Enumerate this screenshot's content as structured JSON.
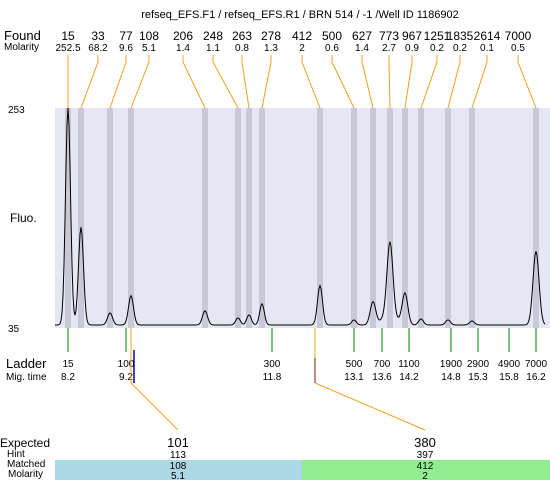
{
  "header": {
    "title": "refseq_EFS.F1 / refseq_EFS.R1 / BRN 514 / -1 /Well ID 1186902"
  },
  "labels": {
    "found": "Found",
    "molarity": "Molarity",
    "fluo": "Fluo.",
    "ladder": "Ladder",
    "mig_time": "Mig. time",
    "expected": "Expected",
    "hint": "Hint",
    "matched": "Matched",
    "matched_molarity": "Molarity"
  },
  "colors": {
    "plot_bg": "#e6e6f5",
    "peak_band": "#c8c8d8",
    "trace": "#000000",
    "leader": "#f0a020",
    "ladder_tick": "#008000",
    "marker_blue": "#0000cc",
    "match_left": "#add8e6",
    "match_right": "#90ee90"
  },
  "chart_data": {
    "type": "line",
    "title": "refseq_EFS.F1 / refseq_EFS.R1 / BRN 514 / -1 /Well ID 1186902",
    "ylabel": "Fluo.",
    "y_ticks": [
      "253",
      "35"
    ],
    "ylim": [
      35,
      253
    ],
    "found_peaks": [
      {
        "size": "15",
        "molarity": "252.5",
        "height": 253
      },
      {
        "size": "33",
        "molarity": "68.2",
        "height": 135
      },
      {
        "size": "77",
        "molarity": "9.6",
        "height": 50
      },
      {
        "size": "108",
        "molarity": "5.1",
        "height": 67
      },
      {
        "size": "206",
        "molarity": "1.4",
        "height": 52
      },
      {
        "size": "248",
        "molarity": "1.1",
        "height": 45
      },
      {
        "size": "263",
        "molarity": "0.8",
        "height": 48
      },
      {
        "size": "278",
        "molarity": "1.3",
        "height": 59
      },
      {
        "size": "412",
        "molarity": "2",
        "height": 77
      },
      {
        "size": "500",
        "molarity": "0.6",
        "height": 43
      },
      {
        "size": "627",
        "molarity": "1.4",
        "height": 61
      },
      {
        "size": "773",
        "molarity": "2.7",
        "height": 118
      },
      {
        "size": "967",
        "molarity": "0.9",
        "height": 69
      },
      {
        "size": "1251",
        "molarity": "0.2",
        "height": 44
      },
      {
        "size": "1835",
        "molarity": "0.2",
        "height": 43
      },
      {
        "size": "2614",
        "molarity": "0.1",
        "height": 42
      },
      {
        "size": "7000",
        "molarity": "0.5",
        "height": 111
      }
    ],
    "ladder": [
      {
        "size": "15",
        "mig_time": "8.2"
      },
      {
        "size": "100",
        "mig_time": "9.2"
      },
      {
        "size": "300",
        "mig_time": "11.8"
      },
      {
        "size": "500",
        "mig_time": "13.1"
      },
      {
        "size": "700",
        "mig_time": "13.6"
      },
      {
        "size": "1100",
        "mig_time": "14.2"
      },
      {
        "size": "1900",
        "mig_time": "14.8"
      },
      {
        "size": "2900",
        "mig_time": "15.3"
      },
      {
        "size": "4900",
        "mig_time": "15.8"
      },
      {
        "size": "7000",
        "mig_time": "16.2"
      }
    ],
    "expected": [
      {
        "expected": "101",
        "hint": "113",
        "matched": "108",
        "molarity": "5.1"
      },
      {
        "expected": "380",
        "hint": "397",
        "matched": "412",
        "molarity": "2"
      }
    ]
  }
}
